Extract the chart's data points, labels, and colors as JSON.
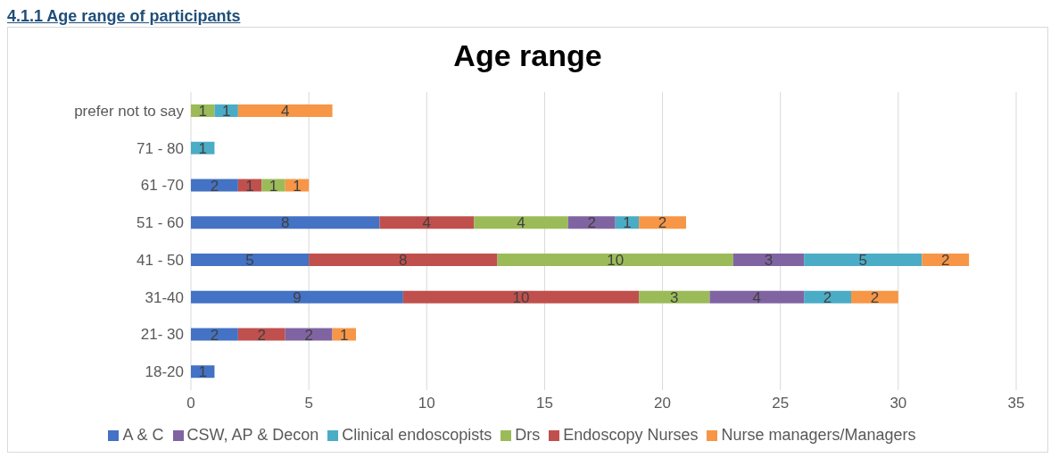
{
  "chart_data": {
    "type": "bar",
    "title": "Age range",
    "annotations": [
      "4.1.1 Age range of participants"
    ],
    "orientation": "horizontal",
    "stacked": true,
    "data_labels": true,
    "grid": "x",
    "legend": "bottom",
    "categories": [
      "prefer not to say",
      "71 - 80",
      "61 -70",
      "51 - 60",
      "41 - 50",
      "31-40",
      "21- 30",
      "18-20"
    ],
    "xlim": [
      0,
      35
    ],
    "xticks": [
      0,
      5,
      10,
      15,
      20,
      25,
      30,
      35
    ],
    "series": [
      {
        "name": "A & C",
        "color": "#4472c4",
        "values": [
          null,
          null,
          2,
          8,
          5,
          9,
          2,
          1
        ]
      },
      {
        "name": "Endoscopy Nurses",
        "color": "#c0504d",
        "values": [
          null,
          null,
          1,
          4,
          8,
          10,
          2,
          null
        ]
      },
      {
        "name": "Drs",
        "color": "#9bbb59",
        "values": [
          1,
          null,
          1,
          4,
          10,
          3,
          null,
          null
        ]
      },
      {
        "name": "CSW, AP & Decon",
        "color": "#8064a2",
        "values": [
          null,
          null,
          null,
          2,
          3,
          4,
          2,
          null
        ]
      },
      {
        "name": "Clinical endoscopists",
        "color": "#4bacc6",
        "values": [
          1,
          1,
          null,
          1,
          5,
          2,
          null,
          null
        ]
      },
      {
        "name": "Nurse managers/Managers",
        "color": "#f79646",
        "values": [
          4,
          null,
          1,
          2,
          2,
          2,
          1,
          null
        ]
      }
    ]
  }
}
